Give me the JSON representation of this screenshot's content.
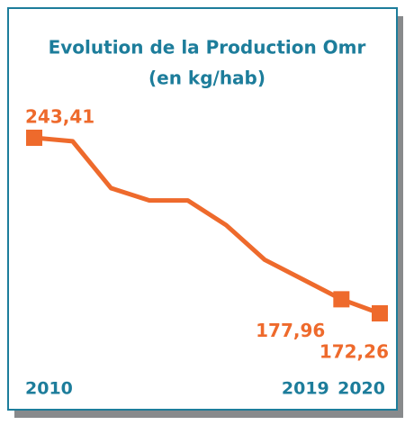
{
  "chart_data": {
    "type": "line",
    "title": "Evolution de la Production Omr",
    "subtitle": "(en kg/hab)",
    "categories": [
      "2010",
      null,
      null,
      null,
      null,
      null,
      null,
      null,
      "2019",
      "2020"
    ],
    "series": [
      {
        "name": null,
        "color": "#ee6a2c",
        "values": [
          243.41,
          242,
          223,
          218,
          218,
          208,
          194,
          186,
          177.96,
          172.26
        ],
        "value_labels": [
          "243,41",
          null,
          null,
          null,
          null,
          null,
          null,
          null,
          "177,96",
          "172,26"
        ]
      }
    ]
  }
}
